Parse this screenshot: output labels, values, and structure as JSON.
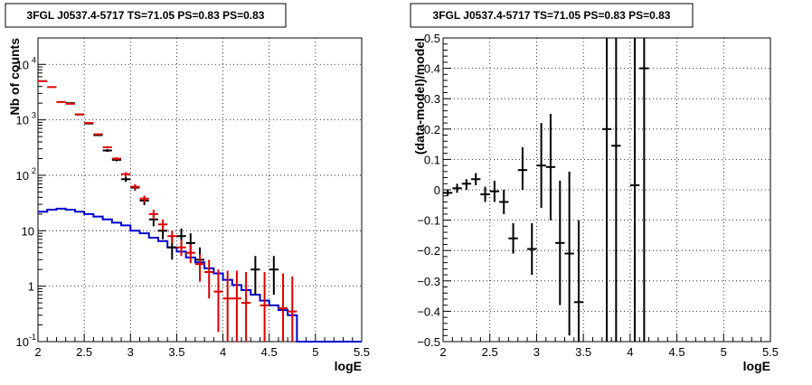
{
  "chart_data": [
    {
      "type": "step-line-errorbar",
      "title": "3FGL J0537.4-5717 TS=71.05 PS=0.83 PS=0.83",
      "xlabel": "logE",
      "ylabel": "Nb of counts",
      "xlim": [
        2,
        5.5
      ],
      "ylim": [
        0.1,
        30000
      ],
      "yscale": "log",
      "grid": true,
      "xticks": [
        "2",
        "2.5",
        "3",
        "3.5",
        "4",
        "4.5",
        "5",
        "5.5"
      ],
      "yticks": [
        {
          "v": 0.1,
          "label": "10",
          "exp": "-1"
        },
        {
          "v": 1,
          "label": "1",
          "exp": ""
        },
        {
          "v": 10,
          "label": "10",
          "exp": ""
        },
        {
          "v": 100,
          "label": "10",
          "exp": "2"
        },
        {
          "v": 1000,
          "label": "10",
          "exp": "3"
        },
        {
          "v": 10000,
          "label": "10",
          "exp": "4"
        }
      ],
      "series": [
        {
          "color": "#0000cc",
          "style": "step",
          "bins": [
            [
              2.0,
              22
            ],
            [
              2.1,
              24
            ],
            [
              2.2,
              25
            ],
            [
              2.3,
              24
            ],
            [
              2.4,
              22
            ],
            [
              2.5,
              20
            ],
            [
              2.6,
              18
            ],
            [
              2.7,
              16
            ],
            [
              2.8,
              14
            ],
            [
              2.9,
              12.5
            ],
            [
              3.0,
              10
            ],
            [
              3.1,
              9
            ],
            [
              3.2,
              7.5
            ],
            [
              3.3,
              6.5
            ],
            [
              3.4,
              5
            ],
            [
              3.5,
              4.2
            ],
            [
              3.6,
              3.3
            ],
            [
              3.7,
              2.7
            ],
            [
              3.8,
              2.1
            ],
            [
              3.9,
              1.7
            ],
            [
              4.0,
              1.3
            ],
            [
              4.1,
              1.05
            ],
            [
              4.2,
              0.85
            ],
            [
              4.3,
              0.7
            ],
            [
              4.4,
              0.55
            ],
            [
              4.5,
              0.45
            ],
            [
              4.6,
              0.37
            ],
            [
              4.7,
              0.3
            ],
            [
              4.8,
              0.1
            ],
            [
              4.9,
              0.1
            ],
            [
              5.0,
              0.1
            ],
            [
              5.1,
              0.1
            ],
            [
              5.2,
              0.1
            ],
            [
              5.3,
              0.1
            ],
            [
              5.4,
              0.1
            ]
          ]
        },
        {
          "color": "#000000",
          "style": "errorbar",
          "points": [
            [
              2.35,
              2000,
              1950,
              2050
            ],
            [
              2.45,
              1250,
              1210,
              1290
            ],
            [
              2.55,
              860,
              830,
              890
            ],
            [
              2.65,
              530,
              510,
              550
            ],
            [
              2.75,
              280,
              265,
              295
            ],
            [
              2.85,
              190,
              178,
              202
            ],
            [
              2.95,
              85,
              76,
              95
            ],
            [
              3.05,
              60,
              53,
              68
            ],
            [
              3.15,
              35,
              29,
              41
            ],
            [
              3.25,
              16,
              12,
              20
            ],
            [
              3.35,
              10,
              7,
              13
            ],
            [
              3.45,
              5,
              3,
              8
            ],
            [
              3.55,
              8,
              5.2,
              11
            ],
            [
              3.65,
              6,
              3.6,
              9
            ],
            [
              3.75,
              3,
              1.5,
              5
            ],
            [
              4.35,
              2,
              0.7,
              3.5
            ],
            [
              4.55,
              2,
              0.7,
              3.5
            ]
          ]
        },
        {
          "color": "#dd0000",
          "style": "errorbar",
          "points": [
            [
              2.05,
              5000,
              4900,
              5100
            ],
            [
              2.15,
              3900,
              3820,
              3980
            ],
            [
              2.25,
              2100,
              2050,
              2150
            ],
            [
              2.35,
              1950,
              1900,
              2000
            ],
            [
              2.45,
              1250,
              1210,
              1290
            ],
            [
              2.55,
              880,
              850,
              910
            ],
            [
              2.65,
              550,
              530,
              570
            ],
            [
              2.75,
              320,
              305,
              335
            ],
            [
              2.85,
              200,
              188,
              212
            ],
            [
              2.95,
              105,
              96,
              114
            ],
            [
              3.05,
              62,
              55,
              69
            ],
            [
              3.15,
              38,
              33,
              43
            ],
            [
              3.25,
              20,
              16,
              24
            ],
            [
              3.35,
              13,
              10,
              16
            ],
            [
              3.45,
              8,
              6,
              10
            ],
            [
              3.55,
              5,
              3.5,
              6.8
            ],
            [
              3.65,
              4,
              2.6,
              5.6
            ],
            [
              3.75,
              2.5,
              1.2,
              3.8
            ],
            [
              3.85,
              1.8,
              0.6,
              3
            ],
            [
              3.95,
              0.8,
              0.15,
              2
            ],
            [
              4.05,
              0.6,
              0.1,
              1.9
            ],
            [
              4.15,
              0.6,
              0.1,
              1.9
            ],
            [
              4.25,
              0.5,
              0.1,
              1.8
            ],
            [
              4.45,
              0.45,
              0.1,
              1.8
            ],
            [
              4.65,
              0.4,
              0.1,
              1.7
            ],
            [
              4.75,
              0.35,
              0.1,
              1.5
            ]
          ]
        }
      ]
    },
    {
      "type": "errorbar",
      "title": "3FGL J0537.4-5717 TS=71.05 PS=0.83 PS=0.83",
      "xlabel": "logE",
      "ylabel": "(data-model)/model",
      "xlim": [
        2,
        5.5
      ],
      "ylim": [
        -0.5,
        0.5
      ],
      "yscale": "linear",
      "grid": true,
      "xticks": [
        "2",
        "2.5",
        "3",
        "3.5",
        "4",
        "4.5",
        "5",
        "5.5"
      ],
      "yticks": [
        "−0.5",
        "−0.4",
        "−0.3",
        "−0.2",
        "−0.1",
        "0",
        "0.1",
        "0.2",
        "0.3",
        "0.4",
        "0.5"
      ],
      "series": [
        {
          "color": "#000000",
          "style": "errorbar",
          "points": [
            [
              2.05,
              -0.01,
              -0.02,
              0.0
            ],
            [
              2.15,
              0.005,
              -0.01,
              0.02
            ],
            [
              2.25,
              0.02,
              0.0,
              0.035
            ],
            [
              2.35,
              0.035,
              0.015,
              0.055
            ],
            [
              2.45,
              -0.015,
              -0.04,
              0.01
            ],
            [
              2.55,
              -0.005,
              -0.04,
              0.03
            ],
            [
              2.65,
              -0.04,
              -0.08,
              0.0
            ],
            [
              2.75,
              -0.16,
              -0.21,
              -0.11
            ],
            [
              2.85,
              0.065,
              0.0,
              0.14
            ],
            [
              2.95,
              -0.195,
              -0.28,
              -0.11
            ],
            [
              3.05,
              0.08,
              -0.06,
              0.22
            ],
            [
              3.15,
              0.075,
              -0.1,
              0.25
            ],
            [
              3.25,
              -0.175,
              -0.38,
              0.03
            ],
            [
              3.35,
              -0.21,
              -0.48,
              0.06
            ],
            [
              3.45,
              -0.37,
              -0.5,
              -0.1
            ],
            [
              3.75,
              0.2,
              -0.5,
              0.5
            ],
            [
              3.85,
              0.145,
              -0.5,
              0.5
            ],
            [
              4.05,
              0.015,
              -0.5,
              0.5
            ],
            [
              4.15,
              0.4,
              -0.5,
              0.5
            ]
          ]
        }
      ]
    }
  ]
}
